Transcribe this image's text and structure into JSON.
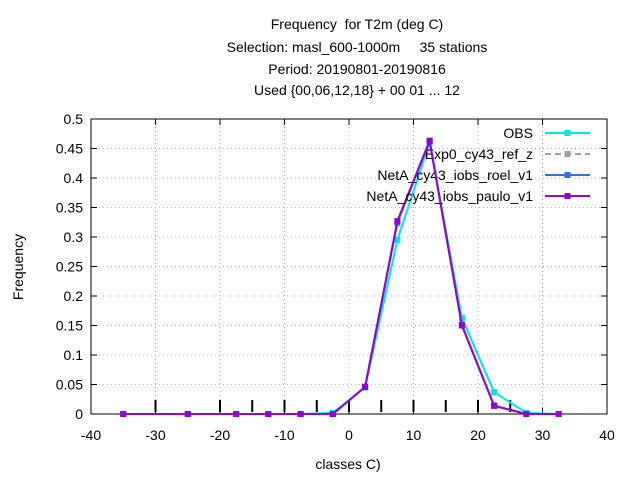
{
  "chart_data": {
    "type": "line",
    "title_lines": [
      "Frequency  for T2m (deg C)",
      "Selection: masl_600-1000m     35 stations",
      "Period: 20190801-20190816",
      "Used {00,06,12,18} + 00 01 ... 12"
    ],
    "xlabel": "classes C)",
    "ylabel": "Frequency",
    "xlim": [
      -40,
      40
    ],
    "ylim": [
      0,
      0.5
    ],
    "xticks": [
      -40,
      -30,
      -20,
      -10,
      0,
      10,
      20,
      30,
      40
    ],
    "yticks": [
      "0",
      "0.05",
      "0.1",
      "0.15",
      "0.2",
      "0.25",
      "0.3",
      "0.35",
      "0.4",
      "0.45",
      "0.5"
    ],
    "grid": true,
    "legend_position": "top-right",
    "obs_class_marks": [
      -30,
      -20,
      -15,
      -10,
      -5,
      0,
      5,
      10,
      15,
      20,
      25
    ],
    "series": [
      {
        "name": "OBS",
        "color": "#00e5e5",
        "style": "solid",
        "x": [
          -35,
          -25,
          -17.5,
          -12.5,
          -7.5,
          -2.5,
          2.5,
          7.5,
          12.5,
          17.5,
          22.5,
          27.5,
          32.5
        ],
        "values": [
          0,
          0,
          0,
          0,
          0,
          0.002,
          0.045,
          0.295,
          0.46,
          0.163,
          0.037,
          0.002,
          0
        ]
      },
      {
        "name": "Exp0_cy43_ref_z",
        "color": "#a0a0a0",
        "style": "dashed",
        "x": [
          -35,
          -25,
          -17.5,
          -12.5,
          -7.5,
          -2.5,
          2.5,
          7.5,
          12.5,
          17.5,
          22.5,
          27.5,
          32.5
        ],
        "values": [
          0,
          0,
          0,
          0,
          0,
          0,
          0.046,
          0.323,
          0.463,
          0.15,
          0.014,
          0,
          0
        ]
      },
      {
        "name": "NetA_cy43_iobs_roel_v1",
        "color": "#3a6ee0",
        "style": "solid",
        "x": [
          -35,
          -25,
          -17.5,
          -12.5,
          -7.5,
          -2.5,
          2.5,
          7.5,
          12.5,
          17.5,
          22.5,
          27.5,
          32.5
        ],
        "values": [
          0,
          0,
          0,
          0,
          0,
          0,
          0.046,
          0.325,
          0.463,
          0.151,
          0.014,
          0,
          0
        ]
      },
      {
        "name": "NetA_cy43_iobs_paulo_v1",
        "color": "#9400d3",
        "style": "solid",
        "x": [
          -35,
          -25,
          -17.5,
          -12.5,
          -7.5,
          -2.5,
          2.5,
          7.5,
          12.5,
          17.5,
          22.5,
          27.5,
          32.5
        ],
        "values": [
          0,
          0,
          0,
          0,
          0,
          0,
          0.046,
          0.327,
          0.463,
          0.15,
          0.014,
          0,
          0
        ]
      }
    ]
  }
}
